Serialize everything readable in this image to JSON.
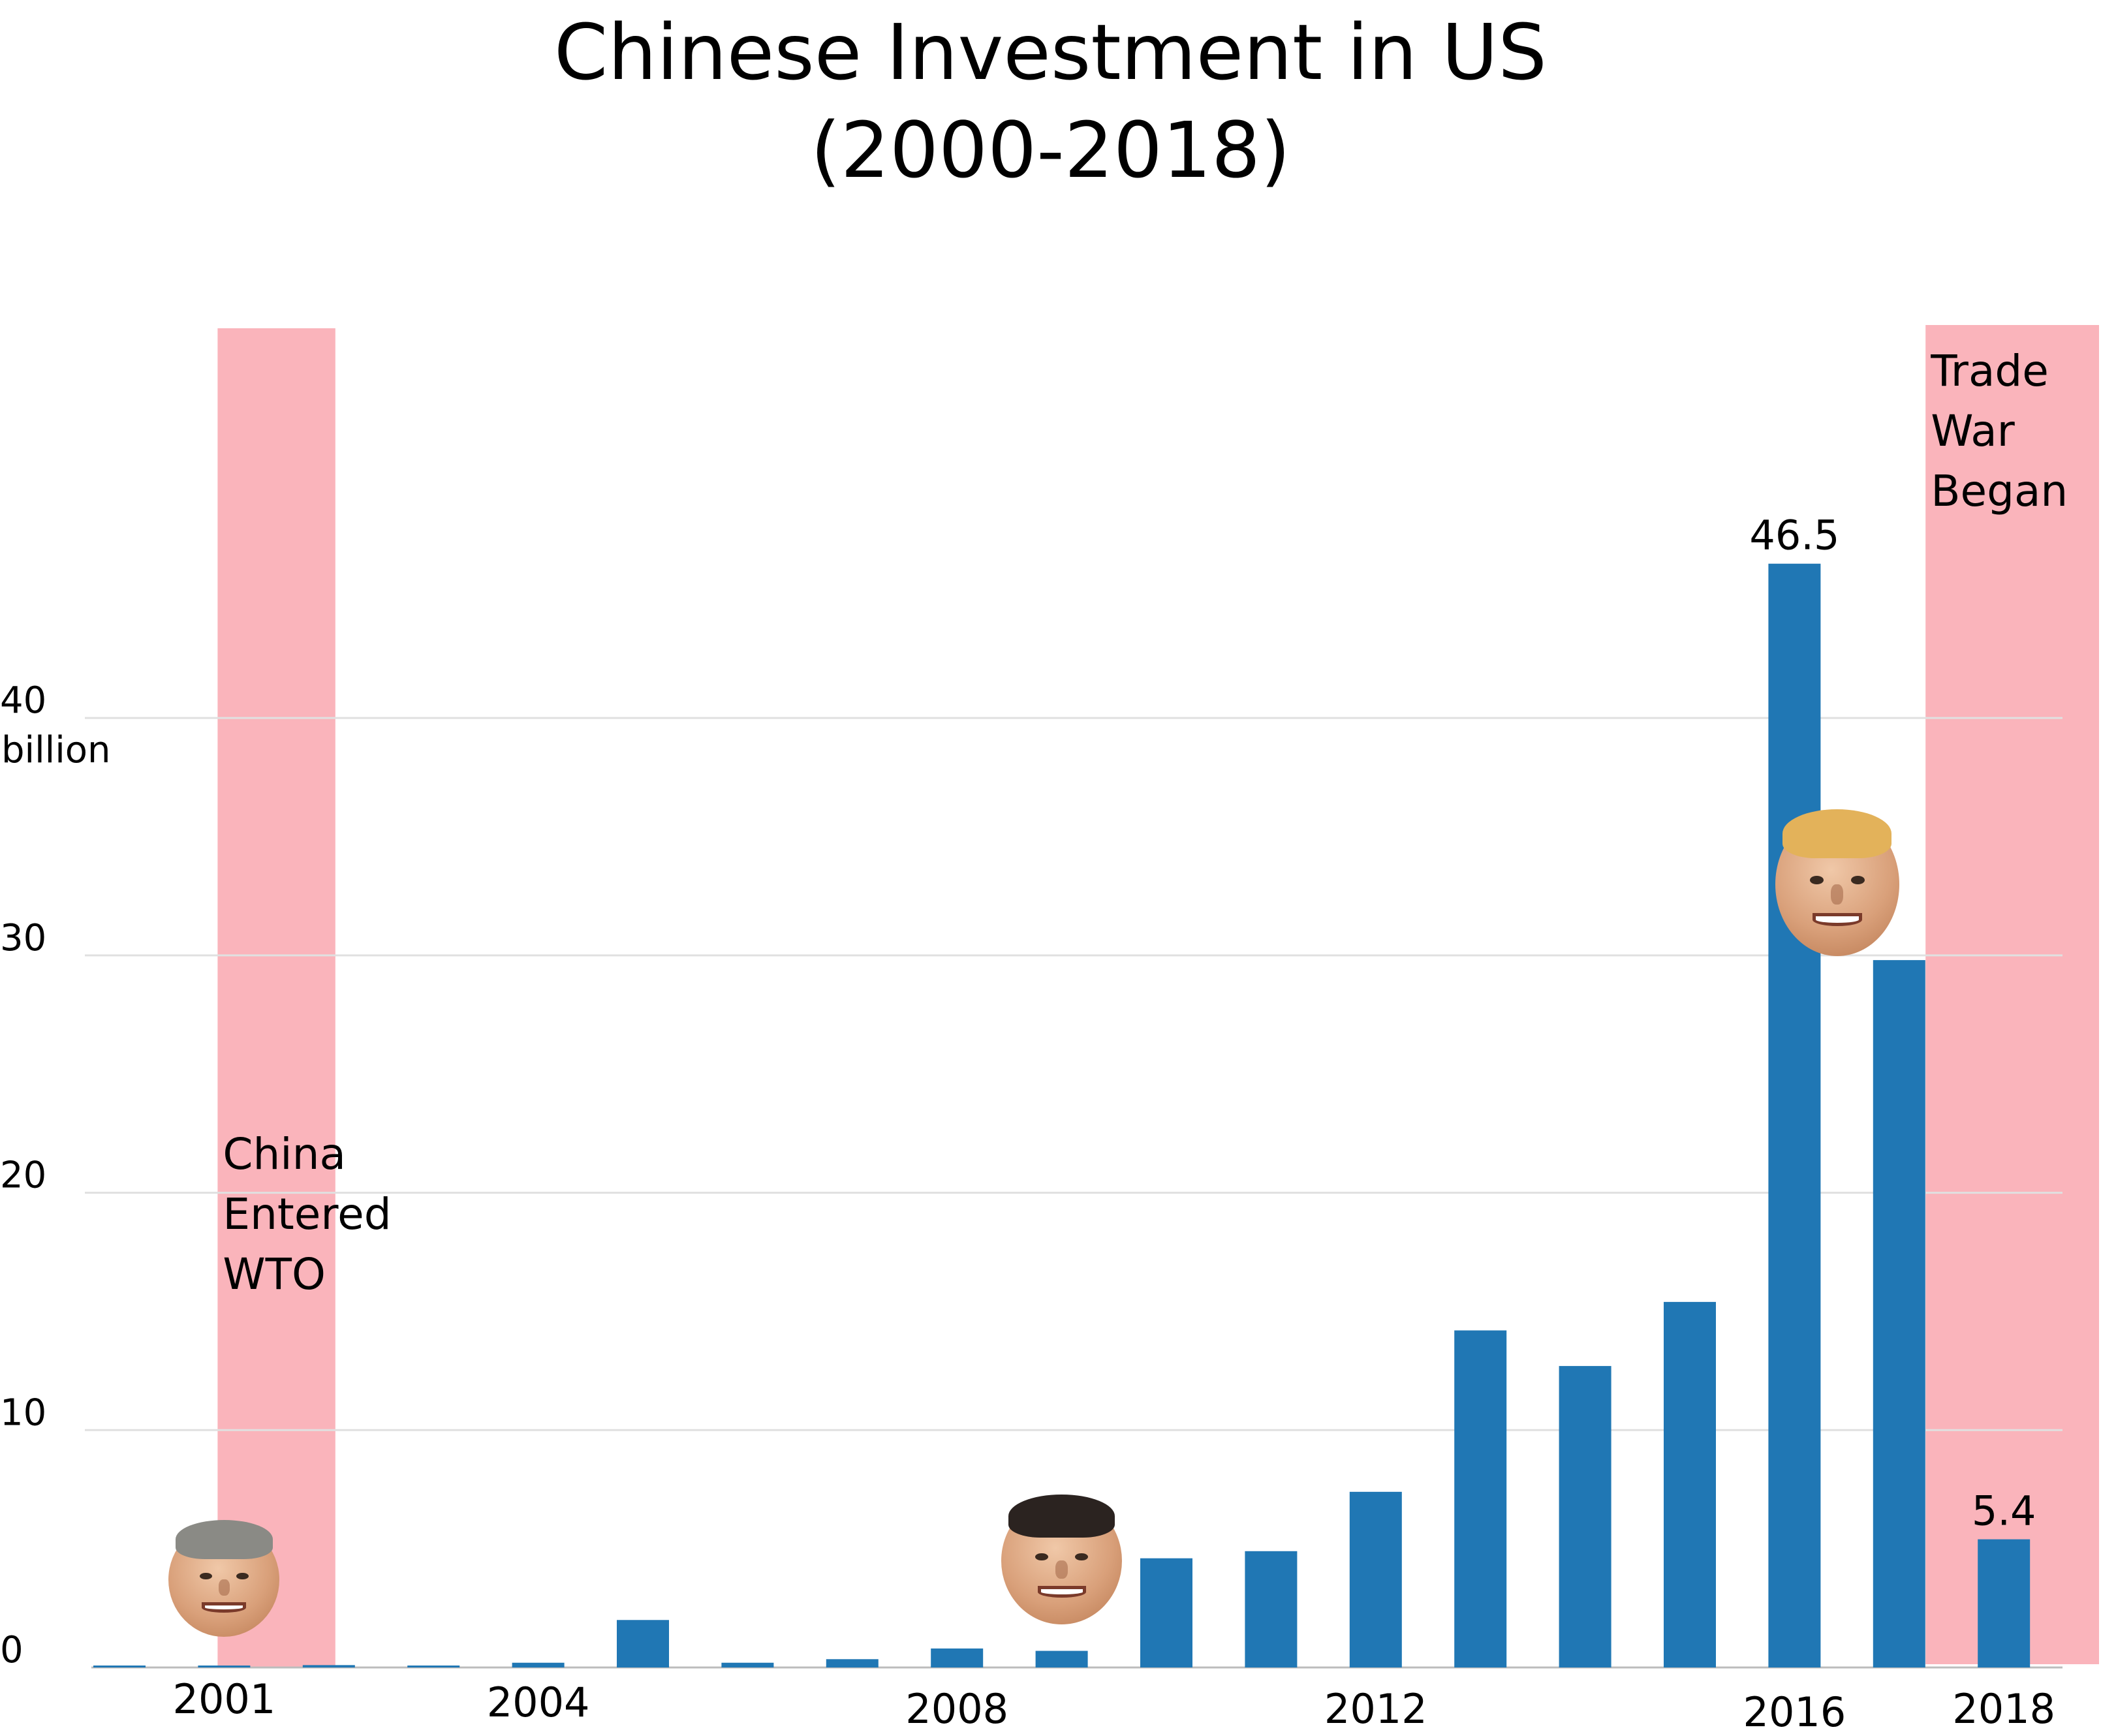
{
  "chart_data": {
    "type": "bar",
    "title": "Chinese Investment in US",
    "subtitle": "(2000-2018)",
    "years": [
      "2000",
      "2001",
      "2002",
      "2003",
      "2004",
      "2005",
      "2006",
      "2007",
      "2008",
      "2009",
      "2010",
      "2011",
      "2012",
      "2013",
      "2014",
      "2015",
      "2016",
      "2017",
      "2018"
    ],
    "values": [
      0.05,
      0.05,
      0.1,
      0.05,
      0.2,
      2.0,
      0.2,
      0.35,
      0.8,
      0.7,
      4.6,
      4.9,
      7.4,
      14.2,
      12.7,
      15.4,
      46.5,
      29.8,
      5.4
    ],
    "tick_labels": [
      {
        "year": "2001",
        "label": "2001"
      },
      {
        "year": "2004",
        "label": "2004"
      },
      {
        "year": "2008",
        "label": "2008"
      },
      {
        "year": "2012",
        "label": "2012"
      },
      {
        "year": "2016",
        "label": "2016"
      },
      {
        "year": "2018",
        "label": "2018"
      }
    ],
    "y_ticks": [
      {
        "value": 0,
        "label": "0"
      },
      {
        "value": 10,
        "label": "10"
      },
      {
        "value": 20,
        "label": "20"
      },
      {
        "value": 30,
        "label": "30"
      },
      {
        "value": 40,
        "label": "40"
      }
    ],
    "y_unit_label": "billion",
    "ylim": [
      0,
      56.5
    ],
    "data_labels": [
      {
        "year": "2016",
        "label": "46.5"
      },
      {
        "year": "2018",
        "label": "5.4"
      }
    ],
    "highlights": [
      {
        "from_year": "2001",
        "to_year": "2002",
        "label_lines": [
          "China",
          "Entered",
          "WTO"
        ],
        "label_value": 21,
        "color": "#fab4bb"
      },
      {
        "from_year": "2018",
        "to_year": "2018",
        "label_lines": [
          "Trade",
          "War",
          "Began"
        ],
        "label_value": 54,
        "color": "#fab4bb"
      }
    ],
    "portraits": [
      {
        "name": "bush-portrait",
        "year": "2001",
        "value": 3.7,
        "hair": "#8a8a85"
      },
      {
        "name": "obama-portrait",
        "year": "2009",
        "value": 4.5,
        "hair": "#2b2320"
      },
      {
        "name": "trump-portrait",
        "year": "2017",
        "value": 33.0,
        "hair": "#e3b25a"
      }
    ],
    "colors": {
      "bar": "#2077b4",
      "highlight": "#fab4bb",
      "grid": "#e0e0e0",
      "text": "#000000"
    },
    "grid": true
  }
}
